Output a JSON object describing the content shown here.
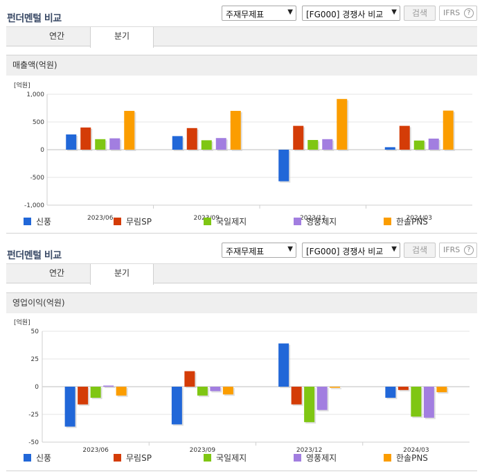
{
  "colors": {
    "series": [
      "#2167d8",
      "#d43c07",
      "#7fc613",
      "#a27ee0",
      "#fb9d00"
    ]
  },
  "sections": [
    {
      "title": "펀더멘털 비교",
      "select_type": "주재무제표",
      "select_peer": "[FG000] 경쟁사 비교",
      "search_label": "검색",
      "ifrs_label": "IFRS",
      "ifrs_help": "?",
      "tabs": [
        {
          "label": "연간"
        },
        {
          "label": "분기"
        }
      ],
      "active_tab": 1,
      "chart_title": "매출액(억원)",
      "chart_data": {
        "type": "bar",
        "title": "매출액(억원)",
        "unit_label": "[억원]",
        "categories": [
          "2023/06",
          "2023/09",
          "2023/12",
          "2024/03"
        ],
        "ylim": [
          -1000,
          1000
        ],
        "yticks": [
          1000,
          500,
          0,
          -500,
          -1000
        ],
        "ytick_labels": [
          "1,000",
          "500",
          "0",
          "-500",
          "-1,000"
        ],
        "grid": true,
        "legend": "bottom",
        "series": [
          {
            "name": "신풍",
            "values": [
              275,
              245,
              -570,
              45
            ]
          },
          {
            "name": "무림SP",
            "values": [
              400,
              390,
              430,
              430
            ]
          },
          {
            "name": "국일제지",
            "values": [
              190,
              170,
              175,
              165
            ]
          },
          {
            "name": "영풍제지",
            "values": [
              205,
              210,
              190,
              200
            ]
          },
          {
            "name": "한솔PNS",
            "values": [
              700,
              700,
              915,
              705
            ]
          }
        ]
      }
    },
    {
      "title": "펀더멘털 비교",
      "select_type": "주재무제표",
      "select_peer": "[FG000] 경쟁사 비교",
      "search_label": "검색",
      "ifrs_label": "IFRS",
      "ifrs_help": "?",
      "tabs": [
        {
          "label": "연간"
        },
        {
          "label": "분기"
        }
      ],
      "active_tab": 1,
      "chart_title": "영업이익(억원)",
      "chart_data": {
        "type": "bar",
        "title": "영업이익(억원)",
        "unit_label": "[억원]",
        "categories": [
          "2023/06",
          "2023/09",
          "2023/12",
          "2024/03"
        ],
        "ylim": [
          -50,
          50
        ],
        "yticks": [
          50,
          25,
          0,
          -25,
          -50
        ],
        "ytick_labels": [
          "50",
          "25",
          "0",
          "-25",
          "-50"
        ],
        "grid": true,
        "legend": "bottom",
        "series": [
          {
            "name": "신풍",
            "values": [
              -36,
              -34,
              39,
              -10
            ]
          },
          {
            "name": "무림SP",
            "values": [
              -16,
              14,
              -16,
              -3
            ]
          },
          {
            "name": "국일제지",
            "values": [
              -10,
              -8,
              -32,
              -27
            ]
          },
          {
            "name": "영풍제지",
            "values": [
              1,
              -4,
              -21,
              -28
            ]
          },
          {
            "name": "한솔PNS",
            "values": [
              -8,
              -7,
              -1,
              -5
            ]
          }
        ]
      }
    }
  ]
}
